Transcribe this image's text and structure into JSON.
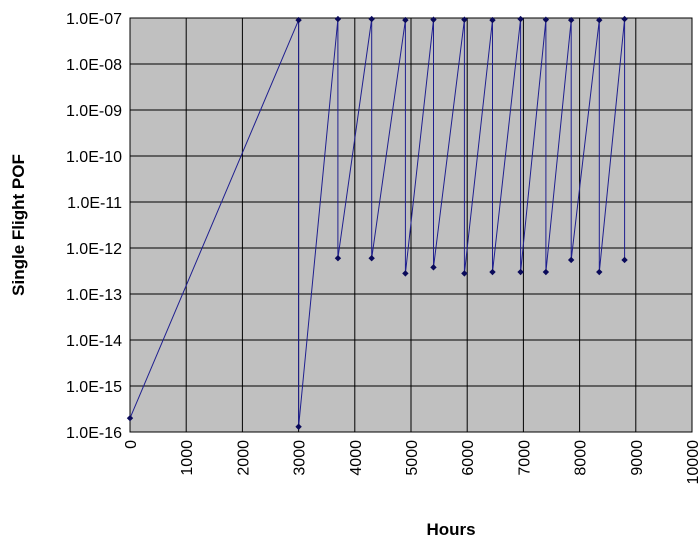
{
  "chart_data": {
    "type": "line",
    "title": "",
    "xlabel": "Hours",
    "ylabel": "Single Flight POF",
    "xlim": [
      0,
      10000
    ],
    "ylim": [
      1e-16,
      1e-07
    ],
    "yscale": "log",
    "x_ticks": [
      0,
      1000,
      2000,
      3000,
      4000,
      5000,
      6000,
      7000,
      8000,
      9000,
      10000
    ],
    "x_tick_labels": [
      "0",
      "1000",
      "2000",
      "3000",
      "4000",
      "5000",
      "6000",
      "7000",
      "8000",
      "9000",
      "10000"
    ],
    "y_ticks": [
      1e-16,
      1e-15,
      1e-14,
      1e-13,
      1e-12,
      1e-11,
      1e-10,
      1e-09,
      1e-08,
      1e-07
    ],
    "y_tick_labels": [
      "1.0E-16",
      "1.0E-15",
      "1.0E-14",
      "1.0E-13",
      "1.0E-12",
      "1.0E-11",
      "1.0E-10",
      "1.0E-09",
      "1.0E-08",
      "1.0E-07"
    ],
    "grid": true,
    "legend": "none",
    "plot_background": "#c0c0c0",
    "series": [
      {
        "color": "#1f1f8f",
        "marker": "diamond",
        "points": [
          [
            0,
            2e-16
          ],
          [
            3000,
            9e-08
          ],
          [
            3000,
            1.3e-16
          ],
          [
            3700,
            9.5e-08
          ],
          [
            3700,
            6e-13
          ],
          [
            4300,
            9.5e-08
          ],
          [
            4300,
            6e-13
          ],
          [
            4900,
            9e-08
          ],
          [
            4900,
            2.8e-13
          ],
          [
            5400,
            9.2e-08
          ],
          [
            5400,
            3.8e-13
          ],
          [
            5950,
            9.2e-08
          ],
          [
            5950,
            2.8e-13
          ],
          [
            6450,
            9e-08
          ],
          [
            6450,
            3e-13
          ],
          [
            6950,
            9.5e-08
          ],
          [
            6950,
            3e-13
          ],
          [
            7400,
            9.2e-08
          ],
          [
            7400,
            3e-13
          ],
          [
            7850,
            9e-08
          ],
          [
            7850,
            5.5e-13
          ],
          [
            8350,
            9e-08
          ],
          [
            8350,
            3e-13
          ],
          [
            8800,
            9.5e-08
          ],
          [
            8800,
            5.5e-13
          ]
        ]
      }
    ]
  }
}
